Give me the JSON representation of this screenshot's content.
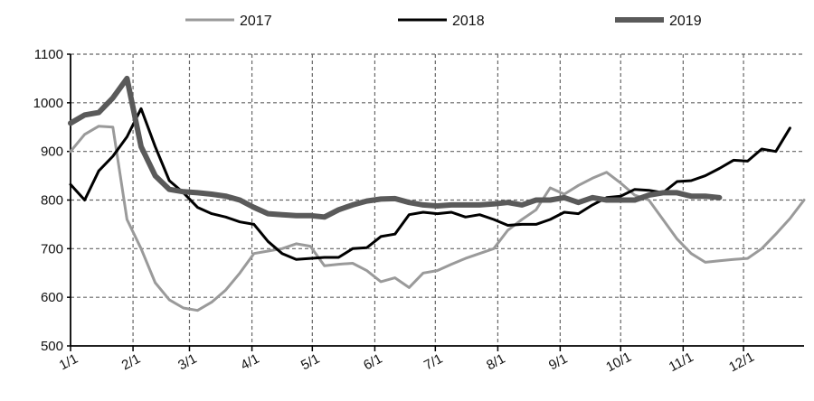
{
  "chart_data": {
    "type": "line",
    "title": "",
    "xlabel": "",
    "ylabel": "",
    "ylim": [
      500,
      1100
    ],
    "yticks": [
      500,
      600,
      700,
      800,
      900,
      1000,
      1100
    ],
    "xlim": [
      0,
      52
    ],
    "xticks": [
      {
        "label": "1/1",
        "x": 0
      },
      {
        "label": "2/1",
        "x": 4.43
      },
      {
        "label": "3/1",
        "x": 8.43
      },
      {
        "label": "4/1",
        "x": 12.86
      },
      {
        "label": "5/1",
        "x": 17.14
      },
      {
        "label": "6/1",
        "x": 21.57
      },
      {
        "label": "7/1",
        "x": 25.86
      },
      {
        "label": "8/1",
        "x": 30.29
      },
      {
        "label": "9/1",
        "x": 34.71
      },
      {
        "label": "10/1",
        "x": 39
      },
      {
        "label": "11/1",
        "x": 43.43
      },
      {
        "label": "12/1",
        "x": 47.71
      }
    ],
    "grid": true,
    "legend": "top",
    "series": [
      {
        "name": "2017",
        "color": "#9a9a9a",
        "width": 3,
        "points": [
          [
            0,
            900
          ],
          [
            1,
            935
          ],
          [
            2,
            952
          ],
          [
            3,
            950
          ],
          [
            4,
            760
          ],
          [
            5,
            700
          ],
          [
            6,
            630
          ],
          [
            7,
            595
          ],
          [
            8,
            578
          ],
          [
            9,
            573
          ],
          [
            10,
            590
          ],
          [
            11,
            615
          ],
          [
            12,
            650
          ],
          [
            13,
            690
          ],
          [
            14,
            695
          ],
          [
            15,
            700
          ],
          [
            16,
            710
          ],
          [
            17,
            705
          ],
          [
            18,
            665
          ],
          [
            19,
            668
          ],
          [
            20,
            670
          ],
          [
            21,
            655
          ],
          [
            22,
            632
          ],
          [
            23,
            640
          ],
          [
            24,
            620
          ],
          [
            25,
            650
          ],
          [
            26,
            655
          ],
          [
            27,
            668
          ],
          [
            28,
            680
          ],
          [
            29,
            690
          ],
          [
            30,
            700
          ],
          [
            31,
            738
          ],
          [
            32,
            760
          ],
          [
            33,
            780
          ],
          [
            34,
            825
          ],
          [
            35,
            812
          ],
          [
            36,
            830
          ],
          [
            37,
            845
          ],
          [
            38,
            857
          ],
          [
            39,
            835
          ],
          [
            40,
            810
          ],
          [
            41,
            800
          ],
          [
            42,
            760
          ],
          [
            43,
            720
          ],
          [
            44,
            690
          ],
          [
            45,
            672
          ],
          [
            46,
            675
          ],
          [
            47,
            678
          ],
          [
            48,
            680
          ],
          [
            49,
            700
          ],
          [
            50,
            730
          ],
          [
            51,
            762
          ],
          [
            52,
            800
          ]
        ]
      },
      {
        "name": "2018",
        "color": "#000000",
        "width": 3,
        "points": [
          [
            0,
            832
          ],
          [
            1,
            800
          ],
          [
            2,
            860
          ],
          [
            3,
            890
          ],
          [
            4,
            930
          ],
          [
            5,
            988
          ],
          [
            6,
            910
          ],
          [
            7,
            840
          ],
          [
            8,
            815
          ],
          [
            9,
            785
          ],
          [
            10,
            772
          ],
          [
            11,
            765
          ],
          [
            12,
            755
          ],
          [
            13,
            750
          ],
          [
            14,
            715
          ],
          [
            15,
            690
          ],
          [
            16,
            678
          ],
          [
            17,
            680
          ],
          [
            18,
            682
          ],
          [
            19,
            682
          ],
          [
            20,
            700
          ],
          [
            21,
            702
          ],
          [
            22,
            725
          ],
          [
            23,
            730
          ],
          [
            24,
            770
          ],
          [
            25,
            775
          ],
          [
            26,
            772
          ],
          [
            27,
            775
          ],
          [
            28,
            765
          ],
          [
            29,
            770
          ],
          [
            30,
            760
          ],
          [
            31,
            748
          ],
          [
            32,
            750
          ],
          [
            33,
            750
          ],
          [
            34,
            760
          ],
          [
            35,
            775
          ],
          [
            36,
            772
          ],
          [
            37,
            790
          ],
          [
            38,
            805
          ],
          [
            39,
            808
          ],
          [
            40,
            822
          ],
          [
            41,
            820
          ],
          [
            42,
            815
          ],
          [
            43,
            838
          ],
          [
            44,
            840
          ],
          [
            45,
            850
          ],
          [
            46,
            865
          ],
          [
            47,
            882
          ],
          [
            48,
            880
          ],
          [
            49,
            905
          ],
          [
            50,
            900
          ],
          [
            51,
            948
          ]
        ]
      },
      {
        "name": "2019",
        "color": "#5a5a5a",
        "width": 6,
        "points": [
          [
            0,
            958
          ],
          [
            1,
            975
          ],
          [
            2,
            980
          ],
          [
            3,
            1010
          ],
          [
            4,
            1050
          ],
          [
            5,
            910
          ],
          [
            6,
            850
          ],
          [
            7,
            822
          ],
          [
            8,
            817
          ],
          [
            9,
            815
          ],
          [
            10,
            812
          ],
          [
            11,
            808
          ],
          [
            12,
            800
          ],
          [
            13,
            785
          ],
          [
            14,
            772
          ],
          [
            15,
            770
          ],
          [
            16,
            768
          ],
          [
            17,
            768
          ],
          [
            18,
            765
          ],
          [
            19,
            780
          ],
          [
            20,
            790
          ],
          [
            21,
            798
          ],
          [
            22,
            802
          ],
          [
            23,
            803
          ],
          [
            24,
            795
          ],
          [
            25,
            790
          ],
          [
            26,
            788
          ],
          [
            27,
            790
          ],
          [
            28,
            790
          ],
          [
            29,
            790
          ],
          [
            30,
            792
          ],
          [
            31,
            795
          ],
          [
            32,
            790
          ],
          [
            33,
            800
          ],
          [
            34,
            800
          ],
          [
            35,
            805
          ],
          [
            36,
            795
          ],
          [
            37,
            805
          ],
          [
            38,
            800
          ],
          [
            39,
            800
          ],
          [
            40,
            800
          ],
          [
            41,
            810
          ],
          [
            42,
            815
          ],
          [
            43,
            815
          ],
          [
            44,
            808
          ],
          [
            45,
            808
          ],
          [
            46,
            805
          ]
        ]
      }
    ]
  }
}
